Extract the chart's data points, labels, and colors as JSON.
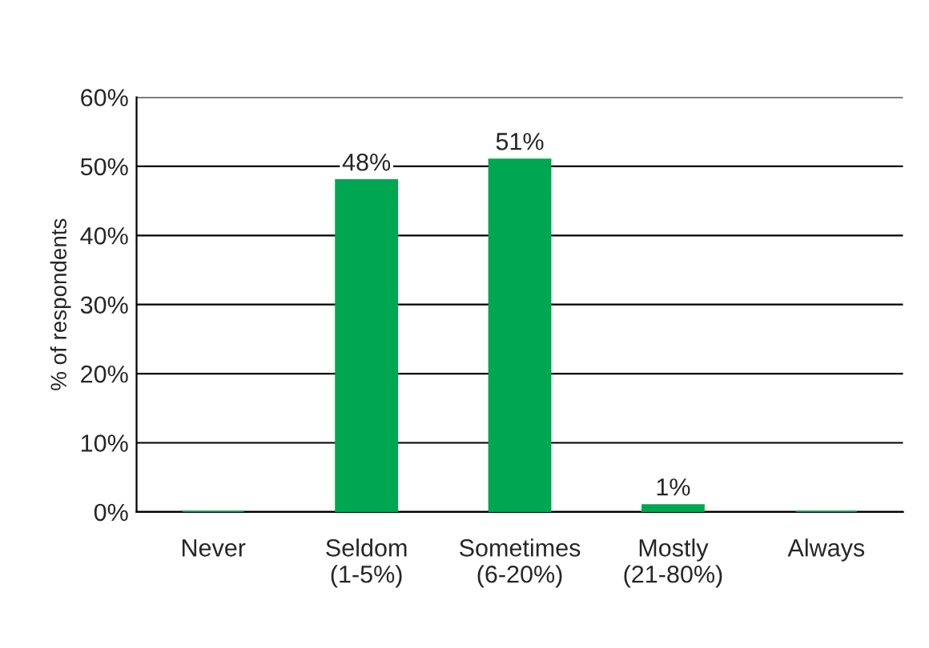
{
  "chart_data": {
    "type": "bar",
    "ylabel": "% of respondents",
    "categories": [
      "Never",
      "Seldom\n(1-5%)",
      "Sometimes\n(6-20%)",
      "Mostly\n(21-80%)",
      "Always"
    ],
    "values": [
      0,
      48,
      51,
      1,
      0
    ],
    "value_labels": [
      null,
      "48%",
      "51%",
      "1%",
      null
    ],
    "color": "#00a651",
    "ylim": [
      0,
      60
    ],
    "yticks": [
      {
        "value": 0,
        "label": "0%"
      },
      {
        "value": 10,
        "label": "10%"
      },
      {
        "value": 20,
        "label": "20%"
      },
      {
        "value": 30,
        "label": "30%"
      },
      {
        "value": 40,
        "label": "40%"
      },
      {
        "value": 50,
        "label": "50%"
      },
      {
        "value": 60,
        "label": "60%"
      }
    ],
    "grid": "y",
    "legend": false
  }
}
